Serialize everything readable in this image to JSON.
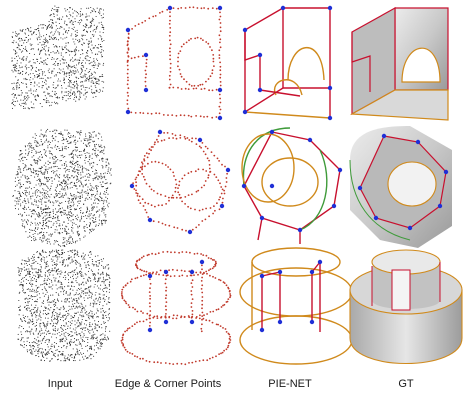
{
  "figure": {
    "columns": [
      {
        "id": "input",
        "label": "Input"
      },
      {
        "id": "edges",
        "label": "Edge & Corner Points"
      },
      {
        "id": "pienet",
        "label": "PIE-NET"
      },
      {
        "id": "gt",
        "label": "GT"
      }
    ],
    "rows": [
      {
        "id": "bracket"
      },
      {
        "id": "hex-block"
      },
      {
        "id": "cylinder"
      }
    ],
    "colors": {
      "input_points": "#2b2b2b",
      "edge_points": "#c0392b",
      "corner_points": "#1f2fd6",
      "sharp_edge": "#c8102e",
      "curve_edge": "#d08a1c",
      "green_curve": "#3f9b3a",
      "gt_surface": "#c9c9c9"
    }
  }
}
